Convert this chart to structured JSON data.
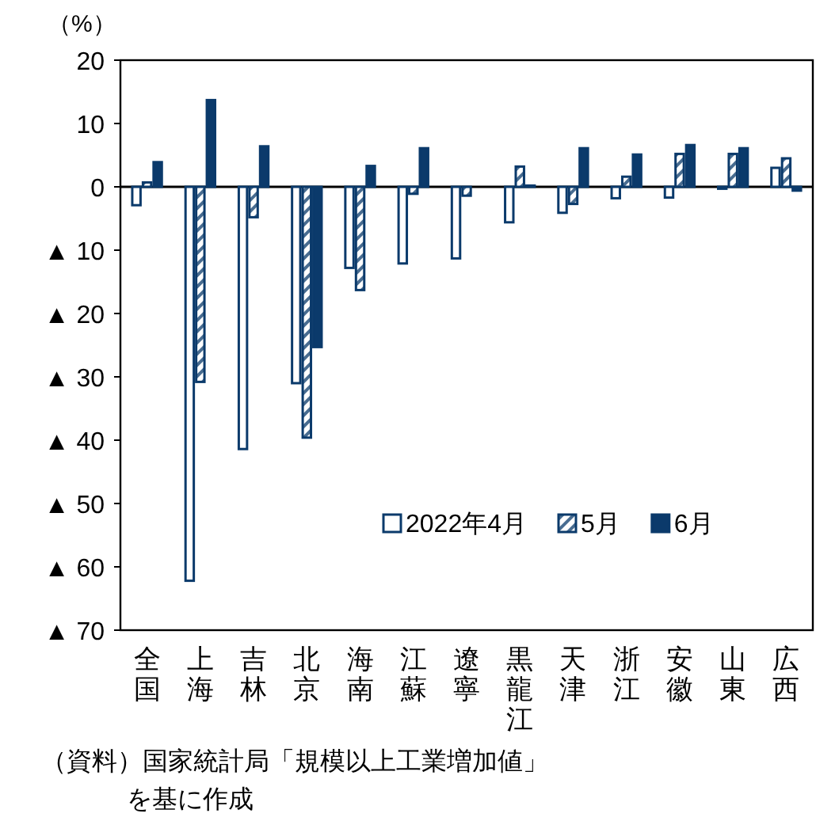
{
  "chart_data": {
    "type": "bar",
    "ylabel": "（%）",
    "categories": [
      "全国",
      "上海",
      "吉林",
      "北京",
      "海南",
      "江蘇",
      "遼寧",
      "黒龍江",
      "天津",
      "浙江",
      "安徽",
      "山東",
      "広西"
    ],
    "series": [
      {
        "name": "2022年4月",
        "color": "#0b3a6b",
        "values": [
          -2.9,
          -62.2,
          -41.4,
          -31.0,
          -12.8,
          -12.1,
          -11.3,
          -5.6,
          -4.1,
          -1.8,
          -1.7,
          -0.3,
          3.0
        ]
      },
      {
        "name": "5月",
        "color": "#0b3a6b",
        "values": [
          0.7,
          -30.8,
          -4.8,
          -39.6,
          -16.3,
          -1.1,
          -1.4,
          3.2,
          -2.7,
          1.6,
          5.2,
          5.2,
          4.5
        ]
      },
      {
        "name": "6月",
        "color": "#0b3a6b",
        "values": [
          3.9,
          13.7,
          6.4,
          -25.3,
          3.3,
          6.1,
          null,
          0.2,
          6.1,
          5.1,
          6.6,
          6.1,
          -0.6
        ]
      }
    ],
    "ylim": [
      -70,
      20
    ],
    "yticks": [
      20,
      10,
      0,
      {
        "value": -10,
        "label": "▲ 10"
      },
      {
        "value": -20,
        "label": "▲ 20"
      },
      {
        "value": -30,
        "label": "▲ 30"
      },
      {
        "value": -40,
        "label": "▲ 40"
      },
      {
        "value": -50,
        "label": "▲ 50"
      },
      {
        "value": -60,
        "label": "▲ 60"
      },
      {
        "value": -70,
        "label": "▲ 70"
      }
    ],
    "legend": "bottom right",
    "ref_lines": [
      {
        "axis": "y",
        "value": 0,
        "color": "#000000"
      }
    ],
    "annotations": [
      "（資料）国家統計局「規模以上工業増加値」",
      "を基に作成"
    ]
  }
}
